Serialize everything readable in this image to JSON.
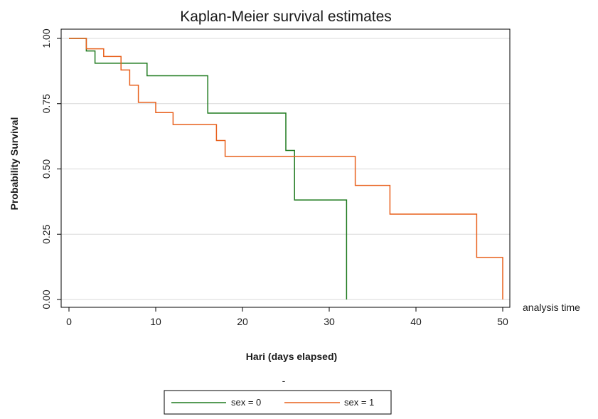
{
  "chart_data": {
    "type": "line",
    "step": true,
    "title": "Kaplan-Meier survival estimates",
    "xlabel": "Hari (days elapsed)",
    "ylabel": "Probability Survival",
    "x_side_note": "analysis time",
    "below_xlabel_mark": "-",
    "xlim": [
      0,
      50
    ],
    "ylim": [
      0,
      1
    ],
    "x_ticks": [
      0,
      10,
      20,
      30,
      40,
      50
    ],
    "y_ticks": [
      0,
      0.25,
      0.5,
      0.75,
      1
    ],
    "y_tick_labels": [
      "0.00",
      "0.25",
      "0.50",
      "0.75",
      "1.00"
    ],
    "grid": "horizontal",
    "legend_placement": "bottom",
    "series": [
      {
        "name": "sex = 0",
        "color": "#1f7a1f",
        "x": [
          1,
          2,
          3,
          9,
          16,
          25,
          26,
          32,
          32
        ],
        "y": [
          1.0,
          0.952,
          0.905,
          0.857,
          0.714,
          0.571,
          0.381,
          0.19,
          0.0
        ]
      },
      {
        "name": "sex = 1",
        "color": "#e8601c",
        "x": [
          0,
          2,
          4,
          6,
          7,
          8,
          10,
          12,
          17,
          18,
          33,
          37,
          47,
          50
        ],
        "y": [
          1.0,
          0.96,
          0.931,
          0.879,
          0.821,
          0.755,
          0.716,
          0.67,
          0.609,
          0.548,
          0.437,
          0.327,
          0.161,
          0.0
        ]
      }
    ]
  }
}
